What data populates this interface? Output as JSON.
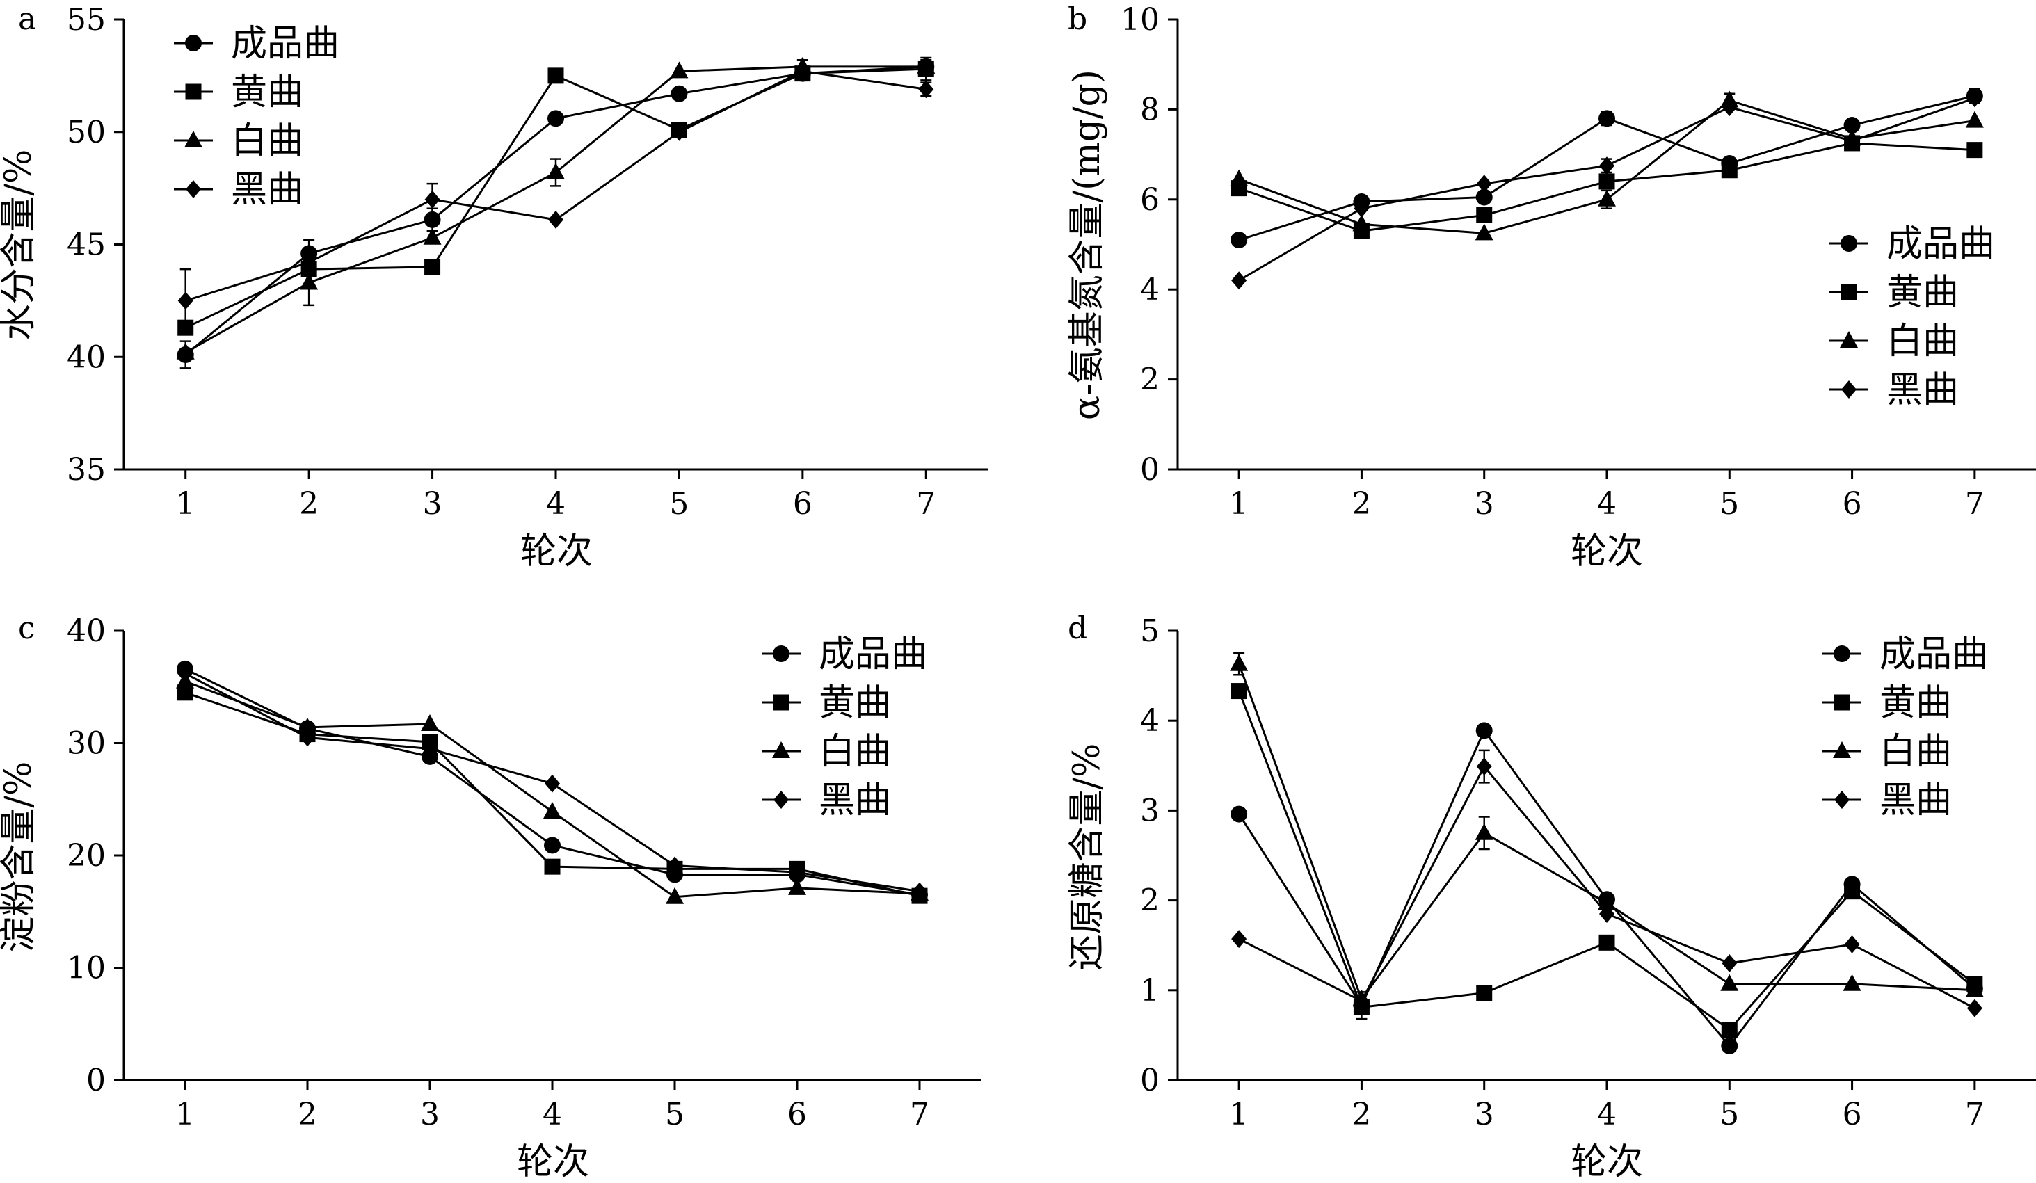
{
  "chart_data": [
    {
      "panel": "a",
      "type": "line",
      "xlabel": "轮次",
      "ylabel": "水分含量/%",
      "x": [
        1,
        2,
        3,
        4,
        5,
        6,
        7
      ],
      "xlim": [
        0.5,
        7.5
      ],
      "ylim": [
        35,
        55
      ],
      "yticks": [
        35,
        40,
        45,
        50,
        55
      ],
      "grid": false,
      "legend_position": "top-left",
      "series": [
        {
          "name": "成品曲",
          "marker": "circle",
          "values": [
            40.1,
            44.6,
            46.1,
            50.6,
            51.7,
            52.6,
            52.9
          ],
          "errors": [
            0.6,
            0.6,
            0.5,
            0,
            0,
            0.3,
            0.3
          ]
        },
        {
          "name": "黄曲",
          "marker": "square",
          "values": [
            41.3,
            43.9,
            44.0,
            52.5,
            50.1,
            52.6,
            52.8
          ],
          "errors": [
            0,
            0,
            0,
            0,
            0,
            0.3,
            0.5
          ]
        },
        {
          "name": "白曲",
          "marker": "triangle",
          "values": [
            40.2,
            43.3,
            45.3,
            48.2,
            52.7,
            52.9,
            52.9
          ],
          "errors": [
            0,
            1.0,
            0,
            0.6,
            0,
            0.3,
            0
          ]
        },
        {
          "name": "黑曲",
          "marker": "diamond",
          "values": [
            42.5,
            44.2,
            47.0,
            46.1,
            50.0,
            52.7,
            51.9
          ],
          "errors": [
            1.4,
            0,
            0.7,
            0,
            0,
            0,
            0.3
          ]
        }
      ]
    },
    {
      "panel": "b",
      "type": "line",
      "xlabel": "轮次",
      "ylabel": "α-氨基氮含量/(mg/g)",
      "x": [
        1,
        2,
        3,
        4,
        5,
        6,
        7
      ],
      "xlim": [
        0.5,
        7.5
      ],
      "ylim": [
        0,
        10
      ],
      "yticks": [
        0,
        2,
        4,
        6,
        8,
        10
      ],
      "grid": false,
      "legend_position": "middle-right",
      "series": [
        {
          "name": "成品曲",
          "marker": "circle",
          "values": [
            5.1,
            5.95,
            6.05,
            7.8,
            6.8,
            7.65,
            8.3
          ],
          "errors": [
            0,
            0,
            0,
            0.15,
            0,
            0,
            0.15
          ]
        },
        {
          "name": "黄曲",
          "marker": "square",
          "values": [
            6.25,
            5.3,
            5.65,
            6.4,
            6.65,
            7.25,
            7.1
          ],
          "errors": [
            0,
            0,
            0,
            0,
            0,
            0,
            0.1
          ]
        },
        {
          "name": "白曲",
          "marker": "triangle",
          "values": [
            6.45,
            5.45,
            5.25,
            6.0,
            8.2,
            7.35,
            7.75
          ],
          "errors": [
            0,
            0,
            0,
            0.2,
            0.15,
            0,
            0
          ]
        },
        {
          "name": "黑曲",
          "marker": "diamond",
          "values": [
            4.2,
            5.8,
            6.35,
            6.75,
            8.05,
            7.3,
            8.25
          ],
          "errors": [
            0,
            0,
            0,
            0.15,
            0,
            0,
            0
          ]
        }
      ]
    },
    {
      "panel": "c",
      "type": "line",
      "xlabel": "轮次",
      "ylabel": "淀粉含量/%",
      "x": [
        1,
        2,
        3,
        4,
        5,
        6,
        7
      ],
      "xlim": [
        0.5,
        7.5
      ],
      "ylim": [
        0,
        40
      ],
      "yticks": [
        0,
        10,
        20,
        30,
        40
      ],
      "grid": false,
      "legend_position": "top-right",
      "series": [
        {
          "name": "成品曲",
          "marker": "circle",
          "values": [
            36.6,
            31.3,
            28.8,
            20.9,
            18.3,
            18.3,
            16.5
          ],
          "errors": [
            0,
            0,
            0,
            0,
            0,
            0,
            0
          ]
        },
        {
          "name": "黄曲",
          "marker": "square",
          "values": [
            34.5,
            30.8,
            30.1,
            19.0,
            18.8,
            18.8,
            16.4
          ],
          "errors": [
            0,
            0,
            0,
            0,
            0,
            0,
            0
          ]
        },
        {
          "name": "白曲",
          "marker": "triangle",
          "values": [
            35.5,
            31.4,
            31.7,
            23.9,
            16.3,
            17.1,
            16.6
          ],
          "errors": [
            0,
            0,
            0,
            0,
            0,
            0,
            0
          ]
        },
        {
          "name": "黑曲",
          "marker": "diamond",
          "values": [
            36.2,
            30.5,
            29.5,
            26.4,
            19.1,
            18.5,
            16.8
          ],
          "errors": [
            0,
            0,
            0,
            0,
            0,
            0,
            0
          ]
        }
      ]
    },
    {
      "panel": "d",
      "type": "line",
      "xlabel": "轮次",
      "ylabel": "还原糖含量/%",
      "x": [
        1,
        2,
        3,
        4,
        5,
        6,
        7
      ],
      "xlim": [
        0.5,
        7.5
      ],
      "ylim": [
        0,
        5
      ],
      "yticks": [
        0,
        1,
        2,
        3,
        4,
        5
      ],
      "grid": false,
      "legend_position": "top-right",
      "series": [
        {
          "name": "成品曲",
          "marker": "circle",
          "values": [
            2.96,
            0.83,
            3.89,
            2.01,
            0.38,
            2.18,
            1.02
          ],
          "errors": [
            0,
            0.15,
            0,
            0,
            0,
            0,
            0
          ]
        },
        {
          "name": "黄曲",
          "marker": "square",
          "values": [
            4.33,
            0.81,
            0.97,
            1.53,
            0.56,
            2.1,
            1.07
          ],
          "errors": [
            0,
            0,
            0,
            0,
            0,
            0,
            0
          ]
        },
        {
          "name": "白曲",
          "marker": "triangle",
          "values": [
            4.63,
            0.9,
            2.75,
            1.97,
            1.07,
            1.07,
            1.0
          ],
          "errors": [
            0.12,
            0,
            0.18,
            0,
            0,
            0,
            0
          ]
        },
        {
          "name": "黑曲",
          "marker": "diamond",
          "values": [
            1.57,
            0.88,
            3.49,
            1.85,
            1.3,
            1.51,
            0.8
          ],
          "errors": [
            0,
            0,
            0.18,
            0,
            0,
            0,
            0
          ]
        }
      ]
    }
  ]
}
